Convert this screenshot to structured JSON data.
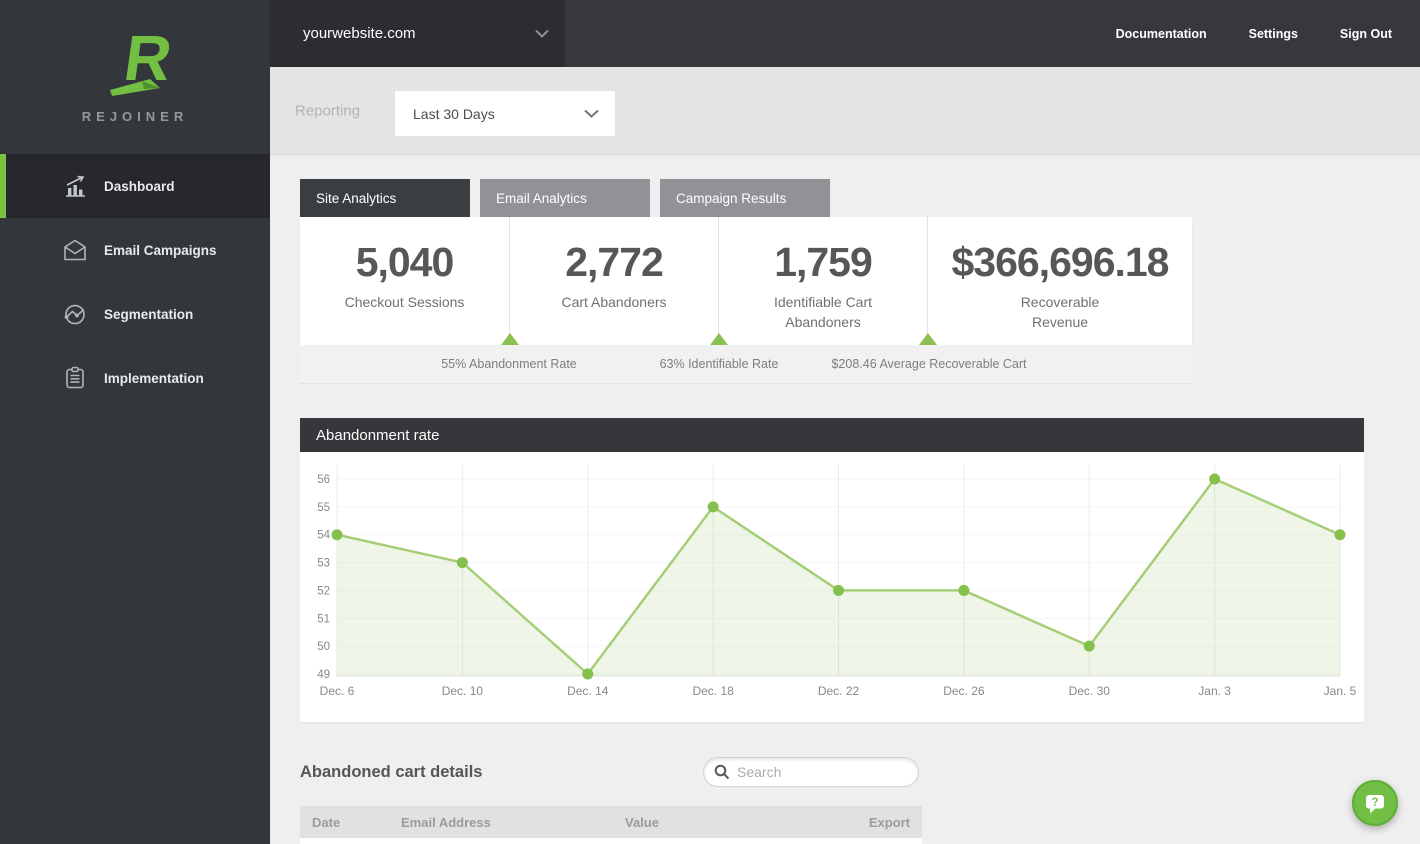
{
  "brand": {
    "logo_letter": "R",
    "name": "REJOINER",
    "green": "#72bf44"
  },
  "topbar": {
    "site": "yourwebsite.com",
    "links": [
      {
        "label": "Documentation"
      },
      {
        "label": "Settings"
      },
      {
        "label": "Sign Out"
      }
    ]
  },
  "sidebar": {
    "items": [
      {
        "label": "Dashboard",
        "icon": "bar-chart-icon",
        "active": true
      },
      {
        "label": "Email Campaigns",
        "icon": "envelope-icon",
        "active": false
      },
      {
        "label": "Segmentation",
        "icon": "segmentation-icon",
        "active": false
      },
      {
        "label": "Implementation",
        "icon": "clipboard-icon",
        "active": false
      }
    ]
  },
  "reporting": {
    "label": "Reporting",
    "range": "Last 30 Days"
  },
  "tabs": [
    {
      "label": "Site Analytics",
      "active": true
    },
    {
      "label": "Email Analytics",
      "active": false
    },
    {
      "label": "Campaign Results",
      "active": false
    }
  ],
  "stats": [
    {
      "value": "5,040",
      "label": "Checkout Sessions"
    },
    {
      "value": "2,772",
      "label": "Cart Abandoners"
    },
    {
      "value": "1,759",
      "label": "Identifiable Cart Abandoners"
    },
    {
      "value": "$366,696.18",
      "label": "Recoverable Revenue"
    }
  ],
  "substats": [
    "55% Abandonment Rate",
    "63% Identifiable Rate",
    "$208.46 Average Recoverable Cart"
  ],
  "chart_data": {
    "type": "area",
    "title": "Abandonment rate",
    "x": [
      "Dec. 6",
      "Dec. 10",
      "Dec. 14",
      "Dec. 18",
      "Dec. 22",
      "Dec. 26",
      "Dec. 30",
      "Jan. 3",
      "Jan. 5"
    ],
    "values": [
      54,
      53,
      49,
      55,
      52,
      52,
      50,
      56,
      54
    ],
    "yticks": [
      49,
      50,
      51,
      52,
      53,
      54,
      55,
      56
    ],
    "ylim": [
      49,
      56
    ],
    "xlabel": "",
    "ylabel": "",
    "grid": true,
    "legend": "none",
    "line_color": "#a6ce78",
    "point_color": "#85c04d",
    "fill_color": "rgba(166,206,120,0.18)"
  },
  "details": {
    "title": "Abandoned cart details",
    "search_placeholder": "Search",
    "table_columns": [
      "Date",
      "Email Address",
      "Value",
      "Export"
    ]
  },
  "help": {
    "icon": "help-chat-icon"
  }
}
